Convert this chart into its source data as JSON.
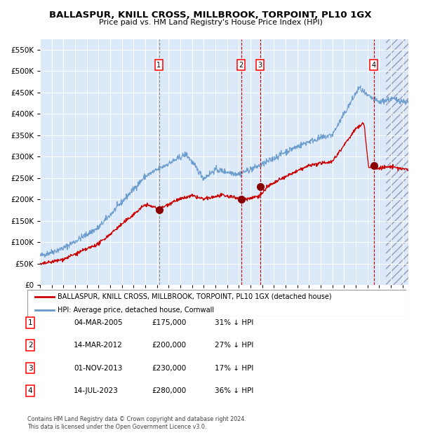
{
  "title": "BALLASPUR, KNILL CROSS, MILLBROOK, TORPOINT, PL10 1GX",
  "subtitle": "Price paid vs. HM Land Registry's House Price Index (HPI)",
  "ylim": [
    0,
    575000
  ],
  "yticks": [
    0,
    50000,
    100000,
    150000,
    200000,
    250000,
    300000,
    350000,
    400000,
    450000,
    500000,
    550000
  ],
  "xlim_start": 1995.0,
  "xlim_end": 2026.5,
  "plot_bg_color": "#dce9f8",
  "hpi_color": "#6699cc",
  "house_color": "#cc0000",
  "sale_marker_color": "#880000",
  "grid_color": "#ffffff",
  "sale_events": [
    {
      "num": 1,
      "year": 2005.17,
      "price": 175000,
      "vline_color": "#888888",
      "vline_style": "--"
    },
    {
      "num": 2,
      "year": 2012.2,
      "price": 200000,
      "vline_color": "#cc0000",
      "vline_style": "--"
    },
    {
      "num": 3,
      "year": 2013.83,
      "price": 230000,
      "vline_color": "#cc0000",
      "vline_style": "--"
    },
    {
      "num": 4,
      "year": 2023.54,
      "price": 280000,
      "vline_color": "#cc0000",
      "vline_style": "--"
    }
  ],
  "hatch_start": 2024.6,
  "legend_house_label": "BALLASPUR, KNILL CROSS, MILLBROOK, TORPOINT, PL10 1GX (detached house)",
  "legend_hpi_label": "HPI: Average price, detached house, Cornwall",
  "footer": "Contains HM Land Registry data © Crown copyright and database right 2024.\nThis data is licensed under the Open Government Licence v3.0.",
  "table_rows": [
    {
      "num": 1,
      "date": "04-MAR-2005",
      "price": "£175,000",
      "pct": "31% ↓ HPI"
    },
    {
      "num": 2,
      "date": "14-MAR-2012",
      "price": "£200,000",
      "pct": "27% ↓ HPI"
    },
    {
      "num": 3,
      "date": "01-NOV-2013",
      "price": "£230,000",
      "pct": "17% ↓ HPI"
    },
    {
      "num": 4,
      "date": "14-JUL-2023",
      "price": "£280,000",
      "pct": "36% ↓ HPI"
    }
  ],
  "fig_width": 6.0,
  "fig_height": 6.2,
  "dpi": 100
}
